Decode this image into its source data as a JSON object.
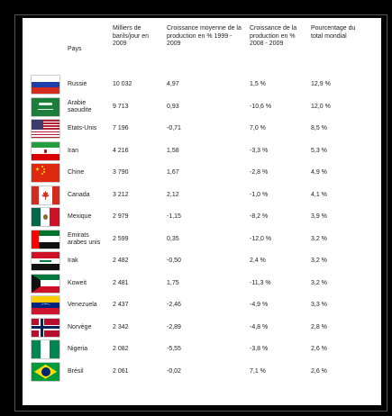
{
  "headers": {
    "pays": "Pays",
    "production": "Milliers de barils/jour en 2009",
    "croissance_moyenne": "Croissance moyenne de la production en % 1999 - 2009",
    "croissance_2008": "Croissance de la production en % 2008 - 2009",
    "pourcentage": "Pourcentage du total mondial"
  },
  "rows": [
    {
      "pays": "Russie",
      "production": "10 032",
      "croissance_moyenne": "4,97",
      "croissance_2008": "1,5 %",
      "pourcentage": "12,9 %",
      "flag_icon": "russia-flag-icon"
    },
    {
      "pays": "Arabie saoudite",
      "production": "9 713",
      "croissance_moyenne": "0,93",
      "croissance_2008": "-10,6 %",
      "pourcentage": "12,0 %",
      "flag_icon": "saudi-arabia-flag-icon"
    },
    {
      "pays": "Etats-Unis",
      "production": "7 196",
      "croissance_moyenne": "-0,71",
      "croissance_2008": "7,0 %",
      "pourcentage": "8,5 %",
      "flag_icon": "usa-flag-icon"
    },
    {
      "pays": "Iran",
      "production": "4 216",
      "croissance_moyenne": "1,58",
      "croissance_2008": "-3,3 %",
      "pourcentage": "5,3 %",
      "flag_icon": "iran-flag-icon"
    },
    {
      "pays": "Chine",
      "production": "3 790",
      "croissance_moyenne": "1,67",
      "croissance_2008": "-2,8 %",
      "pourcentage": "4,9 %",
      "flag_icon": "china-flag-icon"
    },
    {
      "pays": "Canada",
      "production": "3 212",
      "croissance_moyenne": "2,12",
      "croissance_2008": "-1,0 %",
      "pourcentage": "4,1 %",
      "flag_icon": "canada-flag-icon"
    },
    {
      "pays": "Mexique",
      "production": "2 979",
      "croissance_moyenne": "-1,15",
      "croissance_2008": "-8,2 %",
      "pourcentage": "3,9 %",
      "flag_icon": "mexico-flag-icon"
    },
    {
      "pays": "Emirats arabes unis",
      "production": "2 599",
      "croissance_moyenne": "0,35",
      "croissance_2008": "-12,0 %",
      "pourcentage": "3,2 %",
      "flag_icon": "uae-flag-icon"
    },
    {
      "pays": "Irak",
      "production": "2 482",
      "croissance_moyenne": "-0,50",
      "croissance_2008": "2,4 %",
      "pourcentage": "3,2 %",
      "flag_icon": "iraq-flag-icon"
    },
    {
      "pays": "Koweit",
      "production": "2 481",
      "croissance_moyenne": "1,75",
      "croissance_2008": "-11,3 %",
      "pourcentage": "3,2 %",
      "flag_icon": "kuwait-flag-icon"
    },
    {
      "pays": "Venezuela",
      "production": "2 437",
      "croissance_moyenne": "-2,46",
      "croissance_2008": "-4,9 %",
      "pourcentage": "3,3 %",
      "flag_icon": "venezuela-flag-icon"
    },
    {
      "pays": "Norvège",
      "production": "2 342",
      "croissance_moyenne": "-2,89",
      "croissance_2008": "-4,8 %",
      "pourcentage": "2,8 %",
      "flag_icon": "norway-flag-icon"
    },
    {
      "pays": "Nigeria",
      "production": "2 082",
      "croissance_moyenne": "-5,55",
      "croissance_2008": "-3,8 %",
      "pourcentage": "2,6 %",
      "flag_icon": "nigeria-flag-icon"
    },
    {
      "pays": "Brésil",
      "production": "2 061",
      "croissance_moyenne": "-0,02",
      "croissance_2008": "7,1 %",
      "pourcentage": "2,6 %",
      "flag_icon": "brazil-flag-icon"
    }
  ]
}
